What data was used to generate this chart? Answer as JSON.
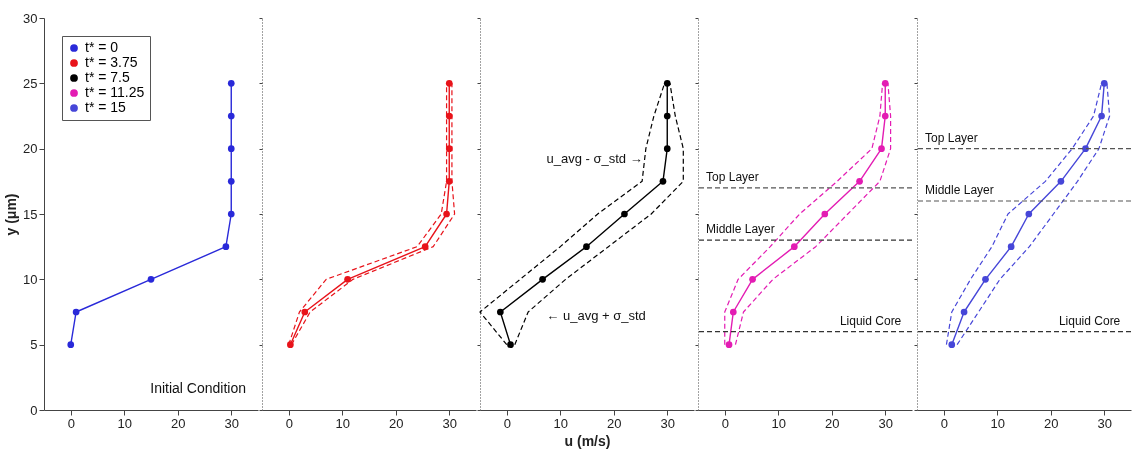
{
  "chart_data": [
    {
      "type": "line",
      "ylabel": "y (μm)",
      "xlim": [
        -5,
        35
      ],
      "xticks": [
        0,
        10,
        20,
        30
      ],
      "ylim": [
        0,
        30
      ],
      "yticks": [
        0,
        5,
        10,
        15,
        20,
        25,
        30
      ],
      "marker": "circle",
      "legend": "top left",
      "annotations": [
        "Initial Condition"
      ],
      "series": [
        {
          "name": "t* = 0",
          "color": "#2929d9",
          "x": [
            0,
            1,
            15,
            29,
            30,
            30,
            30,
            30,
            30
          ],
          "values": [
            5,
            7.5,
            10,
            12.5,
            15,
            17.5,
            20,
            22.5,
            25
          ]
        }
      ]
    },
    {
      "type": "line",
      "xlim": [
        -5,
        35
      ],
      "xticks": [
        0,
        10,
        20,
        30
      ],
      "ylim": [
        0,
        30
      ],
      "yticks": [
        0,
        5,
        10,
        15,
        20,
        25,
        30
      ],
      "marker": "circle",
      "tick_labels": "x",
      "series": [
        {
          "name": "t* = 3.75",
          "color": "#e8131a",
          "x": [
            0.3,
            3,
            11,
            25.5,
            29.5,
            30,
            30,
            30,
            30
          ],
          "values": [
            5,
            7.5,
            10,
            12.5,
            15,
            17.5,
            20,
            22.5,
            25
          ]
        },
        {
          "color": "#e8131a",
          "line_style": "dashed",
          "marker": "none",
          "x": [
            0,
            2,
            7,
            24,
            28.5,
            29.5,
            29.5,
            29.5,
            29.5
          ],
          "values": [
            5,
            7.5,
            10,
            12.5,
            15,
            17.5,
            20,
            22.5,
            25
          ]
        },
        {
          "color": "#e8131a",
          "line_style": "dashed",
          "marker": "none",
          "x": [
            0.5,
            4,
            12,
            27,
            31,
            30.5,
            30.5,
            30.5,
            30.5
          ],
          "values": [
            5,
            7.5,
            10,
            12.5,
            15,
            17.5,
            20,
            22.5,
            25
          ]
        }
      ]
    },
    {
      "type": "line",
      "xlabel": "u (m/s)",
      "xlim": [
        -5,
        35
      ],
      "xticks": [
        0,
        10,
        20,
        30
      ],
      "ylim": [
        0,
        30
      ],
      "yticks": [
        0,
        5,
        10,
        15,
        20,
        25,
        30
      ],
      "marker": "circle",
      "tick_labels": "x",
      "annotations": [
        "u_avg - σ_std →",
        "← u_avg + σ_std"
      ],
      "series": [
        {
          "name": "t* = 7.5",
          "color": "#000000",
          "x": [
            0.7,
            -1.2,
            6.7,
            14.9,
            22,
            29.2,
            30,
            30,
            30
          ],
          "values": [
            5,
            7.5,
            10,
            12.5,
            15,
            17.5,
            20,
            22.5,
            25
          ]
        },
        {
          "color": "#000000",
          "line_style": "dashed",
          "marker": "none",
          "x": [
            0,
            -5,
            2.5,
            10,
            17,
            25.3,
            26,
            27.5,
            29.5
          ],
          "values": [
            5,
            7.5,
            10,
            12.5,
            15,
            17.5,
            20,
            22.5,
            25
          ]
        },
        {
          "color": "#000000",
          "line_style": "dashed",
          "marker": "none",
          "x": [
            1.5,
            4,
            11,
            19,
            27,
            33,
            33,
            31.5,
            30.5
          ],
          "values": [
            5,
            7.5,
            10,
            12.5,
            15,
            17.5,
            20,
            22.5,
            25
          ]
        }
      ]
    },
    {
      "type": "line",
      "xlim": [
        -5,
        35
      ],
      "xticks": [
        0,
        10,
        20,
        30
      ],
      "ylim": [
        0,
        30
      ],
      "yticks": [
        0,
        5,
        10,
        15,
        20,
        25,
        30
      ],
      "marker": "circle",
      "tick_labels": "x",
      "ref_lines": [
        {
          "axis": "y",
          "value": 17,
          "label": "Top Layer",
          "color": "#555555",
          "line_style": "dashed"
        },
        {
          "axis": "y",
          "value": 13,
          "label": "Middle Layer",
          "color": "#333333",
          "line_style": "dashed"
        },
        {
          "axis": "y",
          "value": 6,
          "label": "Liquid Core",
          "color": "#333333",
          "line_style": "dashed"
        }
      ],
      "series": [
        {
          "name": "t* = 11.25",
          "color": "#e31cb3",
          "x": [
            0.8,
            1.6,
            5.2,
            13,
            18.7,
            25.2,
            29.3,
            30,
            30
          ],
          "values": [
            5,
            7.5,
            10,
            12.5,
            15,
            17.5,
            20,
            22.5,
            25
          ]
        },
        {
          "color": "#e31cb3",
          "line_style": "dashed",
          "marker": "none",
          "x": [
            0,
            0,
            2.5,
            8.5,
            14,
            21,
            27.5,
            29,
            29.5
          ],
          "values": [
            5,
            7.5,
            10,
            12.5,
            15,
            17.5,
            20,
            22.5,
            25
          ]
        },
        {
          "color": "#e31cb3",
          "line_style": "dashed",
          "marker": "none",
          "x": [
            2,
            3.5,
            9,
            17,
            23,
            29,
            31,
            31,
            30.5
          ],
          "values": [
            5,
            7.5,
            10,
            12.5,
            15,
            17.5,
            20,
            22.5,
            25
          ]
        }
      ]
    },
    {
      "type": "line",
      "xlim": [
        -5,
        35
      ],
      "xticks": [
        0,
        10,
        20,
        30
      ],
      "ylim": [
        0,
        30
      ],
      "yticks": [
        0,
        5,
        10,
        15,
        20,
        25,
        30
      ],
      "marker": "circle",
      "tick_labels": "x",
      "ref_lines": [
        {
          "axis": "y",
          "value": 20,
          "label": "Top Layer",
          "color": "#555555",
          "line_style": "dashed"
        },
        {
          "axis": "y",
          "value": 16,
          "label": "Middle Layer",
          "color": "#555555",
          "line_style": "dashed"
        },
        {
          "axis": "y",
          "value": 6,
          "label": "Liquid Core",
          "color": "#333333",
          "line_style": "dashed"
        }
      ],
      "series": [
        {
          "name": "t* = 15",
          "color": "#4646d8",
          "x": [
            1.5,
            3.8,
            7.8,
            12.6,
            15.9,
            21.9,
            26.5,
            29.5,
            30
          ],
          "values": [
            5,
            7.5,
            10,
            12.5,
            15,
            17.5,
            20,
            22.5,
            25
          ]
        },
        {
          "color": "#4646d8",
          "line_style": "dashed",
          "marker": "none",
          "x": [
            0.5,
            1.5,
            5,
            9,
            12,
            19,
            24,
            28,
            29.5
          ],
          "values": [
            5,
            7.5,
            10,
            12.5,
            15,
            17.5,
            20,
            22.5,
            25
          ]
        },
        {
          "color": "#4646d8",
          "line_style": "dashed",
          "marker": "none",
          "x": [
            2.5,
            6.5,
            10.5,
            16,
            20.5,
            25,
            29,
            31,
            30.5
          ],
          "values": [
            5,
            7.5,
            10,
            12.5,
            15,
            17.5,
            20,
            22.5,
            25
          ]
        }
      ]
    }
  ]
}
